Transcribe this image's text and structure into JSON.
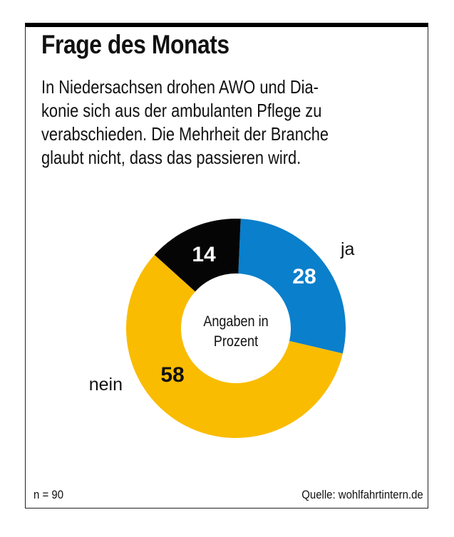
{
  "title": "Frage des Monats",
  "description_lines": [
    "In Niedersachsen drohen AWO und Dia-",
    "konie sich aus der ambulanten Pflege zu",
    "verabschieden. Die Mehrheit der Branche",
    "glaubt nicht, dass das passieren wird."
  ],
  "footer": {
    "sample_size": "n = 90",
    "source": "Quelle: wohlfahrtintern.de"
  },
  "chart_data": {
    "type": "pie",
    "variant": "donut",
    "title": "Frage des Monats",
    "center_label": [
      "Angaben in",
      "Prozent"
    ],
    "unit": "percent",
    "start": "top",
    "direction": "clockwise",
    "slices": [
      {
        "label": "ja",
        "value": 28,
        "color": "#0a7fcb",
        "value_color": "#ffffff"
      },
      {
        "label": "nein",
        "value": 58,
        "color": "#f9bc00",
        "value_color": "#111111"
      },
      {
        "label": "",
        "value": 14,
        "color": "#050505",
        "value_color": "#ffffff"
      }
    ]
  }
}
